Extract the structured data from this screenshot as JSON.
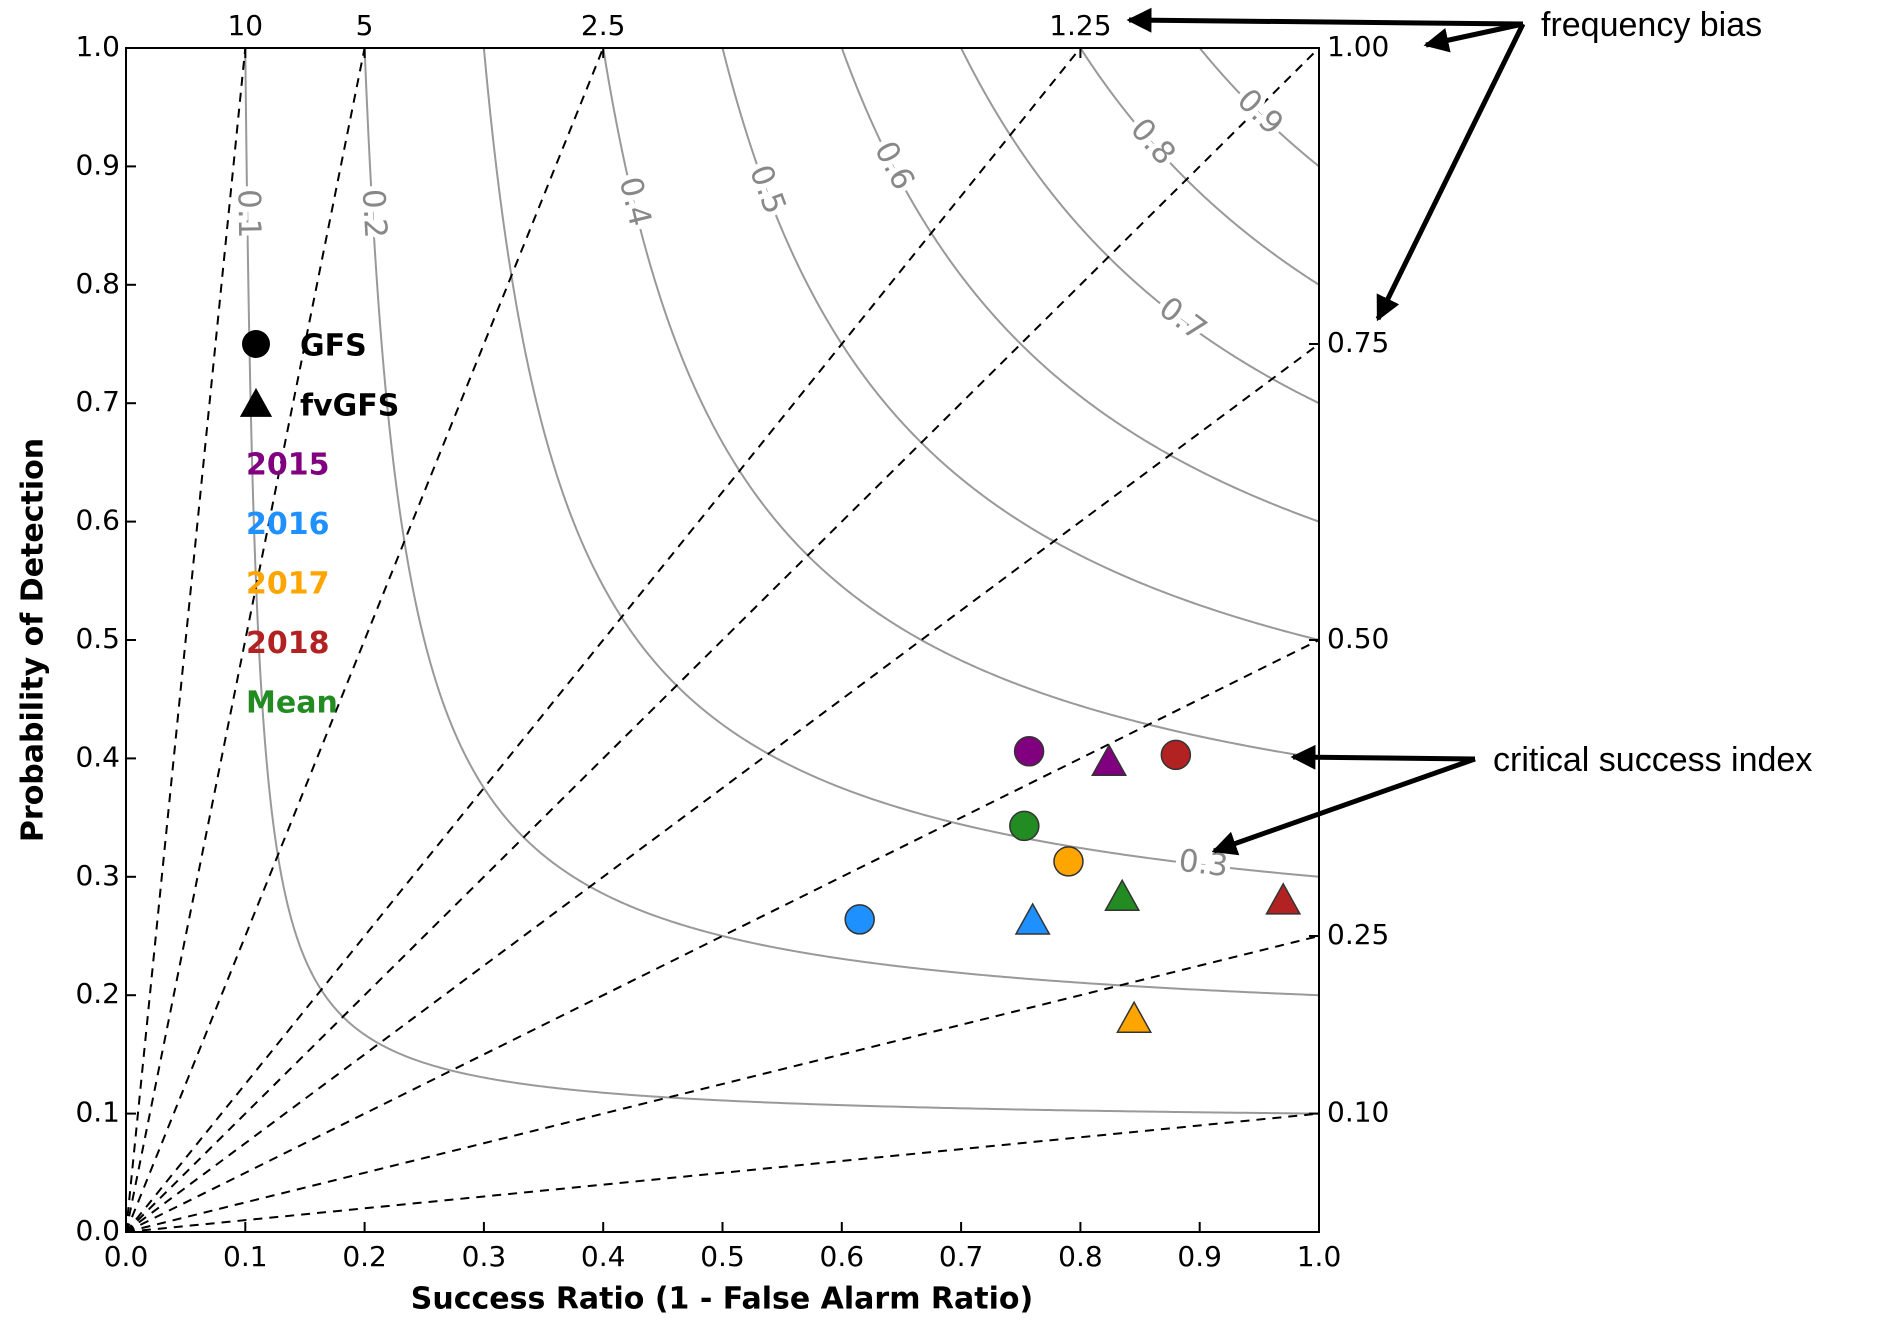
{
  "chart_data": {
    "type": "performance",
    "xlabel": "Success Ratio (1 - False Alarm Ratio)",
    "ylabel": "Probability of Detection",
    "xlim": [
      0,
      1
    ],
    "ylim": [
      0,
      1
    ],
    "xticks": [
      {
        "value": 0,
        "label": "0.0"
      },
      0.1,
      0.2,
      0.3,
      0.4,
      0.5,
      0.6,
      0.7,
      0.8,
      0.9,
      {
        "value": 1,
        "label": "1.0"
      }
    ],
    "yticks": [
      {
        "value": 0,
        "label": "0.0"
      },
      0.1,
      0.2,
      0.3,
      0.4,
      0.5,
      0.6,
      0.7,
      0.8,
      0.9,
      {
        "value": 1,
        "label": "1.0"
      }
    ],
    "bias_lines": [
      10,
      5,
      2.5,
      1.25,
      {
        "value": 1,
        "label": "1.00"
      },
      {
        "value": 0.75,
        "label": "0.75"
      },
      {
        "value": 0.5,
        "label": "0.50"
      },
      {
        "value": 0.25,
        "label": "0.25"
      },
      {
        "value": 0.1,
        "label": "0.10"
      }
    ],
    "csi_contours": [
      0.1,
      0.2,
      0.3,
      0.4,
      0.5,
      0.6,
      0.7,
      0.8,
      0.9
    ],
    "groups": [
      {
        "name": "2015",
        "color": "#800080"
      },
      {
        "name": "2016",
        "color": "#1e90ff"
      },
      {
        "name": "2017",
        "color": "#ffa500"
      },
      {
        "name": "2018",
        "color": "#b22222"
      },
      {
        "name": "Mean",
        "color": "#228b22"
      }
    ],
    "series": [
      {
        "name": "GFS",
        "marker": "circle",
        "x": [
          0.757,
          0.615,
          0.79,
          0.88,
          0.753
        ],
        "values": [
          0.406,
          0.264,
          0.313,
          0.403,
          0.343
        ]
      },
      {
        "name": "fvGFS",
        "marker": "triangle",
        "x": [
          0.824,
          0.76,
          0.845,
          0.97,
          0.835
        ],
        "values": [
          0.397,
          0.263,
          0.18,
          0.28,
          0.283
        ]
      }
    ],
    "annotations": [
      "frequency bias",
      "critical success index"
    ]
  }
}
